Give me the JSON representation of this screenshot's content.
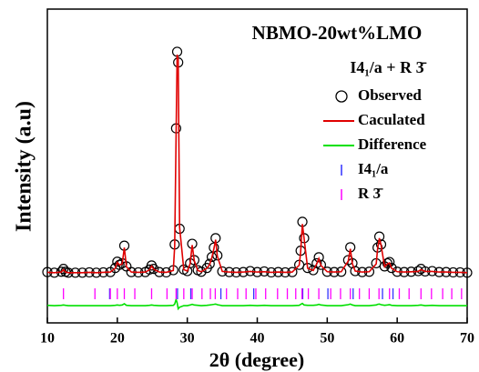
{
  "chart_data": {
    "type": "line",
    "title": "NBMO-20wt%LMO",
    "annotation": "I4₁/a + R 3̄",
    "x_label": "2θ (degree)",
    "y_label": "Intensity (a.u)",
    "xlim": [
      10,
      70
    ],
    "xticks": [
      10,
      20,
      30,
      40,
      50,
      60,
      70
    ],
    "ylim": [
      0,
      1000
    ],
    "x": [
      10,
      11,
      12,
      12.3,
      12.6,
      13,
      14,
      15,
      16,
      17,
      18,
      19,
      19.7,
      20.0,
      20.3,
      20.7,
      21.0,
      21.3,
      22,
      23,
      24,
      24.6,
      24.9,
      25.2,
      26,
      27,
      28,
      28.2,
      28.4,
      28.55,
      28.7,
      28.9,
      29.5,
      30,
      30.4,
      30.7,
      31.0,
      31.5,
      32,
      32.8,
      33.2,
      33.5,
      33.8,
      34.05,
      34.3,
      35,
      36,
      37,
      38,
      39,
      40,
      41,
      42,
      43,
      44,
      45,
      46,
      46.2,
      46.45,
      46.7,
      47.2,
      48,
      48.5,
      48.8,
      49.1,
      50,
      51,
      52,
      53,
      53.3,
      53.6,
      54,
      55,
      56,
      57,
      57.2,
      57.45,
      57.7,
      58.2,
      58.6,
      58.9,
      59.2,
      60,
      61,
      62,
      63,
      63.4,
      64,
      65,
      66,
      67,
      68,
      69,
      70
    ],
    "series": [
      {
        "name": "Observed",
        "style": "markers",
        "color": "#000000",
        "values": [
          162,
          160,
          163,
          172,
          163,
          160,
          160,
          160,
          161,
          160,
          161,
          162,
          175,
          195,
          185,
          190,
          246,
          180,
          162,
          161,
          162,
          170,
          183,
          172,
          162,
          161,
          168,
          250,
          620,
          864,
          830,
          300,
          170,
          165,
          190,
          252,
          200,
          168,
          163,
          175,
          188,
          210,
          240,
          270,
          215,
          164,
          162,
          161,
          162,
          165,
          162,
          164,
          161,
          162,
          161,
          162,
          185,
          230,
          322,
          270,
          175,
          168,
          190,
          209,
          185,
          163,
          162,
          163,
          200,
          241,
          190,
          165,
          162,
          163,
          190,
          240,
          275,
          250,
          180,
          190,
          194,
          175,
          163,
          162,
          163,
          165,
          172,
          164,
          165,
          162,
          162,
          161,
          161,
          160
        ]
      },
      {
        "name": "Caculated",
        "style": "line",
        "color": "#e00000",
        "values": [
          161,
          160,
          162,
          170,
          162,
          160,
          160,
          160,
          161,
          160,
          161,
          162,
          174,
          193,
          184,
          188,
          240,
          179,
          162,
          161,
          162,
          169,
          181,
          171,
          162,
          161,
          167,
          245,
          600,
          855,
          840,
          305,
          170,
          165,
          188,
          248,
          198,
          167,
          163,
          174,
          186,
          207,
          236,
          265,
          212,
          164,
          162,
          161,
          162,
          164,
          162,
          163,
          161,
          162,
          161,
          162,
          184,
          226,
          315,
          268,
          174,
          167,
          188,
          205,
          183,
          163,
          162,
          163,
          197,
          236,
          188,
          165,
          162,
          163,
          188,
          236,
          270,
          247,
          179,
          188,
          191,
          174,
          163,
          162,
          163,
          164,
          170,
          164,
          164,
          162,
          162,
          161,
          161,
          160
        ]
      },
      {
        "name": "Difference",
        "style": "line",
        "color": "#00e000",
        "values": [
          56,
          55,
          56,
          57,
          56,
          55,
          55,
          55,
          55,
          55,
          55,
          55,
          56,
          57,
          56,
          57,
          61,
          56,
          55,
          55,
          55,
          56,
          57,
          56,
          55,
          55,
          56,
          60,
          75,
          64,
          45,
          50,
          55,
          55,
          57,
          59,
          57,
          56,
          55,
          56,
          57,
          58,
          59,
          60,
          58,
          55,
          55,
          55,
          55,
          56,
          55,
          56,
          55,
          55,
          55,
          55,
          56,
          59,
          62,
          57,
          56,
          56,
          57,
          59,
          57,
          55,
          55,
          55,
          58,
          60,
          57,
          55,
          55,
          55,
          57,
          59,
          60,
          58,
          56,
          57,
          58,
          56,
          55,
          55,
          55,
          56,
          57,
          55,
          56,
          55,
          55,
          55,
          55,
          55
        ]
      },
      {
        "name": "I4₁/a",
        "style": "ticks",
        "color": "#3030ff",
        "x": [
          18.9,
          28.6,
          30.5,
          34.8,
          39.5,
          46.5,
          50.1,
          53.7,
          57.9,
          59.4
        ]
      },
      {
        "name": "R 3̄",
        "style": "ticks",
        "color": "#ff00ff",
        "x": [
          12.3,
          16.8,
          19.0,
          20.0,
          21.0,
          22.5,
          24.9,
          27.1,
          28.4,
          29.5,
          30.7,
          32.1,
          33.3,
          34.0,
          35.6,
          37.2,
          38.4,
          39.8,
          41.2,
          42.9,
          44.3,
          45.5,
          46.4,
          47.3,
          48.8,
          50.5,
          51.9,
          53.3,
          54.6,
          56.0,
          57.4,
          58.9,
          60.3,
          61.7,
          63.4,
          64.9,
          66.5,
          67.8,
          69.2
        ]
      }
    ]
  }
}
